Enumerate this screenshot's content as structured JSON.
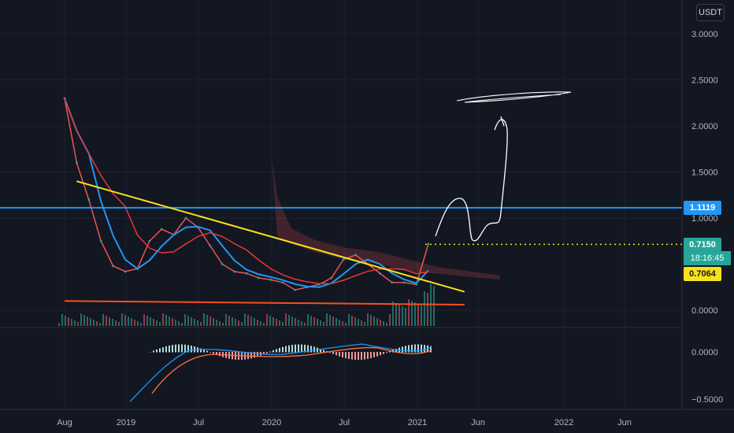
{
  "currency": "USDT",
  "price_axis": {
    "ticks": [
      "3.0000",
      "2.5000",
      "2.0000",
      "1.5000",
      "1.0000",
      "0.0000"
    ],
    "tick_values": [
      3.0,
      2.5,
      2.0,
      1.5,
      1.0,
      0.0
    ],
    "macd_ticks": [
      "0.0000",
      "−0.5000"
    ],
    "macd_tick_values": [
      0.0,
      -0.5
    ]
  },
  "time_axis": {
    "labels": [
      "Aug",
      "2019",
      "Jul",
      "2020",
      "Jul",
      "2021",
      "Jun",
      "2022",
      "Jun"
    ]
  },
  "price_tags": {
    "resistance": {
      "label": "1.1119",
      "value": 1.1119,
      "color": "#2196f3"
    },
    "last": {
      "label": "0.7150",
      "value": 0.715,
      "color": "#26a69a"
    },
    "timer": "18:16:45",
    "ma": {
      "label": "0.7064",
      "value": 0.7064,
      "color": "#f7e21a"
    }
  },
  "chart_data": {
    "type": "line",
    "title": "",
    "xlabel": "",
    "ylabel": "",
    "ylim": [
      0,
      3.0
    ],
    "series": [
      {
        "x": [
          "2018-08",
          "2018-09",
          "2018-10",
          "2018-11",
          "2018-12",
          "2019-01",
          "2019-02",
          "2019-03",
          "2019-04",
          "2019-05",
          "2019-06",
          "2019-07",
          "2019-08",
          "2019-09",
          "2019-10",
          "2019-11",
          "2019-12",
          "2020-01",
          "2020-02",
          "2020-03",
          "2020-04",
          "2020-05",
          "2020-06",
          "2020-07",
          "2020-08",
          "2020-09",
          "2020-10",
          "2020-11",
          "2020-12",
          "2021-01",
          "2021-02"
        ],
        "values": [
          2.3,
          1.6,
          1.2,
          0.75,
          0.48,
          0.42,
          0.45,
          0.75,
          0.88,
          0.82,
          1.0,
          0.9,
          0.7,
          0.5,
          0.42,
          0.4,
          0.35,
          0.33,
          0.3,
          0.22,
          0.25,
          0.28,
          0.35,
          0.55,
          0.6,
          0.5,
          0.4,
          0.3,
          0.3,
          0.28,
          0.72
        ]
      }
    ],
    "horizontal_lines": [
      {
        "value": 1.1119,
        "color": "#2196f3"
      },
      {
        "value": 0.715,
        "color": "#f7e21a",
        "style": "dotted"
      }
    ],
    "trendlines": [
      {
        "from": [
          "2018-09",
          1.4
        ],
        "to": [
          "2021-04",
          0.2
        ],
        "color": "#f7e21a"
      },
      {
        "from": [
          "2018-08",
          0.1
        ],
        "to": [
          "2021-04",
          0.06
        ],
        "color": "#f4511e"
      }
    ],
    "grid": true
  }
}
